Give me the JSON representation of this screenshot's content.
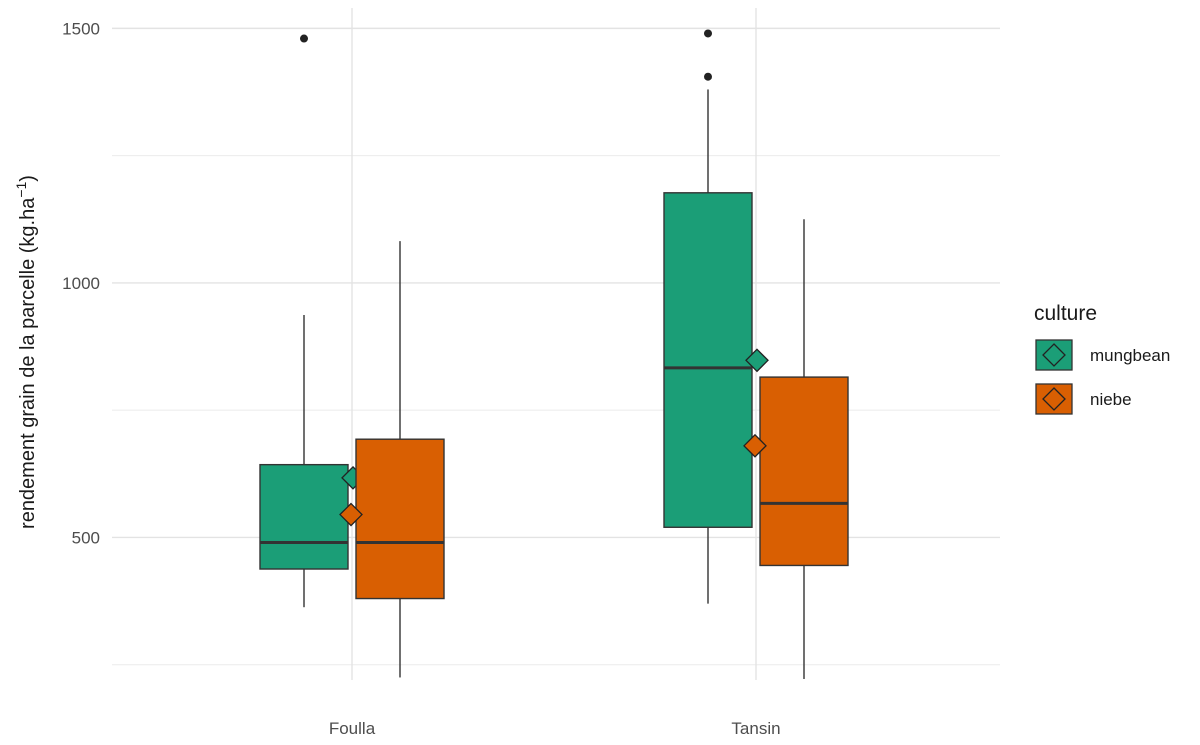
{
  "chart_data": {
    "type": "boxplot",
    "title": "",
    "xlabel": "",
    "ylabel": "rendement grain de la parcelle (kg.ha",
    "ylabel_superscript": "−1",
    "ylabel_close": ")",
    "ylim": [
      220,
      1540
    ],
    "yticks": [
      500,
      1000,
      1500
    ],
    "yminor_ticks": [
      250,
      750,
      1250
    ],
    "categories": [
      "Foulla",
      "Tansin"
    ],
    "legend": {
      "title": "culture",
      "position": "right"
    },
    "series": [
      {
        "name": "mungbean",
        "color": "#1b9e77",
        "boxes": [
          {
            "category": "Foulla",
            "whisker_low": 363,
            "q1": 438,
            "median": 490,
            "q3": 643,
            "whisker_high": 937,
            "mean": 617,
            "outliers": [
              1480
            ]
          },
          {
            "category": "Tansin",
            "whisker_low": 370,
            "q1": 520,
            "median": 833,
            "q3": 1177,
            "whisker_high": 1380,
            "mean": 848,
            "outliers": [
              1490,
              1405
            ]
          }
        ]
      },
      {
        "name": "niebe",
        "color": "#d95f02",
        "boxes": [
          {
            "category": "Foulla",
            "whisker_low": 225,
            "q1": 380,
            "median": 490,
            "q3": 693,
            "whisker_high": 1082,
            "mean": 545,
            "outliers": []
          },
          {
            "category": "Tansin",
            "whisker_low": 222,
            "q1": 445,
            "median": 567,
            "q3": 815,
            "whisker_high": 1125,
            "mean": 680,
            "outliers": []
          }
        ]
      }
    ]
  }
}
